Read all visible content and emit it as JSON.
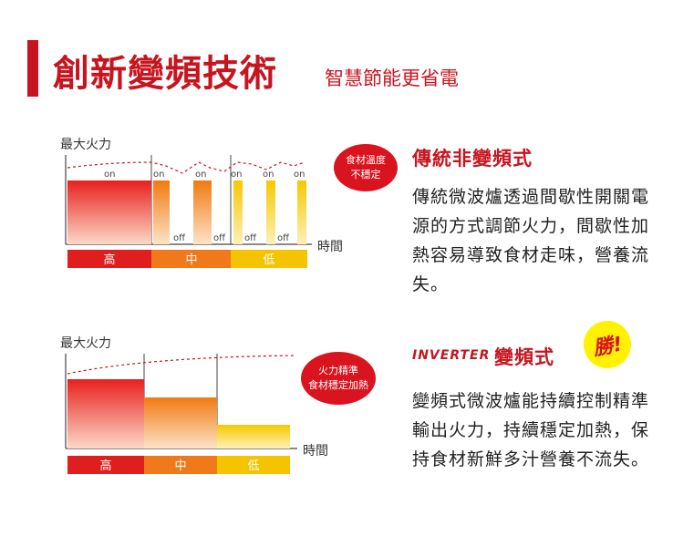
{
  "header": {
    "title": "創新變頻技術",
    "subtitle": "智慧節能更省電"
  },
  "colors": {
    "accent": "#c8141e",
    "high": "#e01e1e",
    "mid": "#f07a1a",
    "low": "#f5c400"
  },
  "traditional": {
    "ylabel": "最大火力",
    "xlabel": "時間",
    "bubble_line1": "食材溫度",
    "bubble_line2": "不穩定",
    "heading": "傳統非變頻式",
    "text": "傳統微波爐透過間歇性開關電源的方式調節火力，間歇性加熱容易導致食材走味，營養流失。",
    "on_label": "on",
    "off_label": "off",
    "bands": [
      "高",
      "中",
      "低"
    ]
  },
  "inverter": {
    "ylabel": "最大火力",
    "xlabel": "時間",
    "bubble_line1": "火力精準",
    "bubble_line2": "食材穩定加熱",
    "logo": "INVERTER",
    "heading": "變頻式",
    "badge": "勝!",
    "text": "變頻式微波爐能持續控制精準輸出火力，持續穩定加熱，保持食材新鮮多汁營養不流失。",
    "bands": [
      "高",
      "中",
      "低"
    ]
  }
}
